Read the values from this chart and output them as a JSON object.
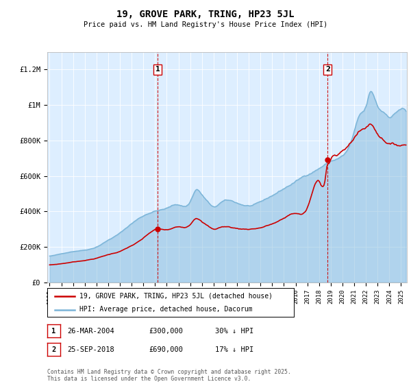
{
  "title": "19, GROVE PARK, TRING, HP23 5JL",
  "subtitle": "Price paid vs. HM Land Registry's House Price Index (HPI)",
  "ylim": [
    0,
    1300000
  ],
  "yticks": [
    0,
    200000,
    400000,
    600000,
    800000,
    1000000,
    1200000
  ],
  "ytick_labels": [
    "£0",
    "£200K",
    "£400K",
    "£600K",
    "£800K",
    "£1M",
    "£1.2M"
  ],
  "sale1_x": 2004.23,
  "sale1_price": 300000,
  "sale1_label": "26-MAR-2004",
  "sale1_pct": "30% ↓ HPI",
  "sale2_x": 2018.73,
  "sale2_price": 690000,
  "sale2_label": "25-SEP-2018",
  "sale2_pct": "17% ↓ HPI",
  "legend_line1": "19, GROVE PARK, TRING, HP23 5JL (detached house)",
  "legend_line2": "HPI: Average price, detached house, Dacorum",
  "footer": "Contains HM Land Registry data © Crown copyright and database right 2025.\nThis data is licensed under the Open Government Licence v3.0.",
  "hpi_color": "#7ab4d8",
  "price_color": "#cc0000",
  "vline_color": "#cc0000",
  "bg_color": "#ddeeff",
  "plot_bg": "#ffffff",
  "xlim": [
    1994.8,
    2025.5
  ]
}
